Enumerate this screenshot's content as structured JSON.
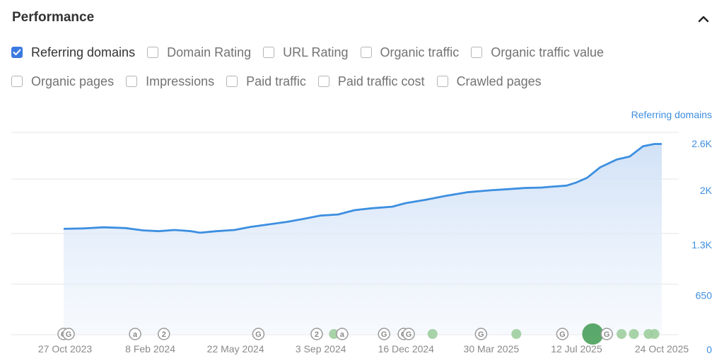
{
  "header": {
    "title": "Performance",
    "collapse_icon": "chevron-up-icon"
  },
  "checkboxes": [
    [
      {
        "label": "Referring domains",
        "checked": true
      },
      {
        "label": "Domain Rating",
        "checked": false
      },
      {
        "label": "URL Rating",
        "checked": false
      },
      {
        "label": "Organic traffic",
        "checked": false
      },
      {
        "label": "Organic traffic value",
        "checked": false
      }
    ],
    [
      {
        "label": "Organic pages",
        "checked": false
      },
      {
        "label": "Impressions",
        "checked": false
      },
      {
        "label": "Paid traffic",
        "checked": false
      },
      {
        "label": "Paid traffic cost",
        "checked": false
      },
      {
        "label": "Crawled pages",
        "checked": false
      }
    ]
  ],
  "colors": {
    "accent": "#3b7be0",
    "line": "#3d8fe0",
    "fill": "#dce8f8",
    "green": "#5fae6b"
  },
  "chart_data": {
    "type": "area",
    "ylabel": "Referring domains",
    "yticks": [
      "2.6K",
      "2K",
      "1.3K",
      "650",
      "0"
    ],
    "ytick_values": [
      2600,
      2000,
      1300,
      650,
      0
    ],
    "ylim": [
      0,
      2600
    ],
    "xticks": [
      "27 Oct 2023",
      "8 Feb 2024",
      "22 May 2024",
      "3 Sep 2024",
      "16 Dec 2024",
      "30 Mar 2025",
      "12 Jul 2025",
      "24 Oct 2025"
    ],
    "xlim": [
      "2023-10-27",
      "2025-10-24"
    ],
    "series": [
      {
        "points": [
          [
            "2023-10-27",
            1360
          ],
          [
            "2023-11-20",
            1365
          ],
          [
            "2023-12-15",
            1380
          ],
          [
            "2024-01-10",
            1370
          ],
          [
            "2024-02-01",
            1340
          ],
          [
            "2024-02-20",
            1330
          ],
          [
            "2024-03-10",
            1345
          ],
          [
            "2024-03-30",
            1330
          ],
          [
            "2024-04-10",
            1310
          ],
          [
            "2024-04-30",
            1330
          ],
          [
            "2024-05-22",
            1345
          ],
          [
            "2024-06-10",
            1385
          ],
          [
            "2024-07-01",
            1415
          ],
          [
            "2024-07-25",
            1450
          ],
          [
            "2024-08-15",
            1490
          ],
          [
            "2024-09-03",
            1530
          ],
          [
            "2024-09-25",
            1545
          ],
          [
            "2024-10-15",
            1600
          ],
          [
            "2024-11-05",
            1625
          ],
          [
            "2024-11-30",
            1645
          ],
          [
            "2024-12-16",
            1690
          ],
          [
            "2025-01-10",
            1735
          ],
          [
            "2025-02-01",
            1780
          ],
          [
            "2025-03-01",
            1830
          ],
          [
            "2025-03-30",
            1855
          ],
          [
            "2025-04-20",
            1870
          ],
          [
            "2025-05-10",
            1885
          ],
          [
            "2025-05-30",
            1890
          ],
          [
            "2025-06-10",
            1900
          ],
          [
            "2025-06-30",
            1915
          ],
          [
            "2025-07-12",
            1955
          ],
          [
            "2025-07-25",
            2015
          ],
          [
            "2025-08-10",
            2150
          ],
          [
            "2025-08-30",
            2250
          ],
          [
            "2025-09-15",
            2290
          ],
          [
            "2025-10-01",
            2420
          ],
          [
            "2025-10-15",
            2450
          ],
          [
            "2025-10-24",
            2450
          ]
        ]
      }
    ],
    "annotations": [
      {
        "date": "2023-10-27",
        "kind": "G"
      },
      {
        "date": "2023-11-02",
        "kind": "G"
      },
      {
        "date": "2024-01-22",
        "kind": "a"
      },
      {
        "date": "2024-02-26",
        "kind": "2"
      },
      {
        "date": "2024-06-20",
        "kind": "G"
      },
      {
        "date": "2024-08-30",
        "kind": "2"
      },
      {
        "date": "2024-09-20",
        "kind": "dot"
      },
      {
        "date": "2024-09-30",
        "kind": "a"
      },
      {
        "date": "2024-11-20",
        "kind": "G"
      },
      {
        "date": "2024-12-14",
        "kind": "G"
      },
      {
        "date": "2024-12-20",
        "kind": "G"
      },
      {
        "date": "2025-01-18",
        "kind": "dot"
      },
      {
        "date": "2025-03-18",
        "kind": "G"
      },
      {
        "date": "2025-04-30",
        "kind": "dot"
      },
      {
        "date": "2025-06-25",
        "kind": "G"
      },
      {
        "date": "2025-08-01",
        "kind": "big"
      },
      {
        "date": "2025-08-18",
        "kind": "G"
      },
      {
        "date": "2025-09-05",
        "kind": "dot"
      },
      {
        "date": "2025-09-20",
        "kind": "dot"
      },
      {
        "date": "2025-10-08",
        "kind": "dot"
      },
      {
        "date": "2025-10-15",
        "kind": "dot"
      }
    ]
  }
}
